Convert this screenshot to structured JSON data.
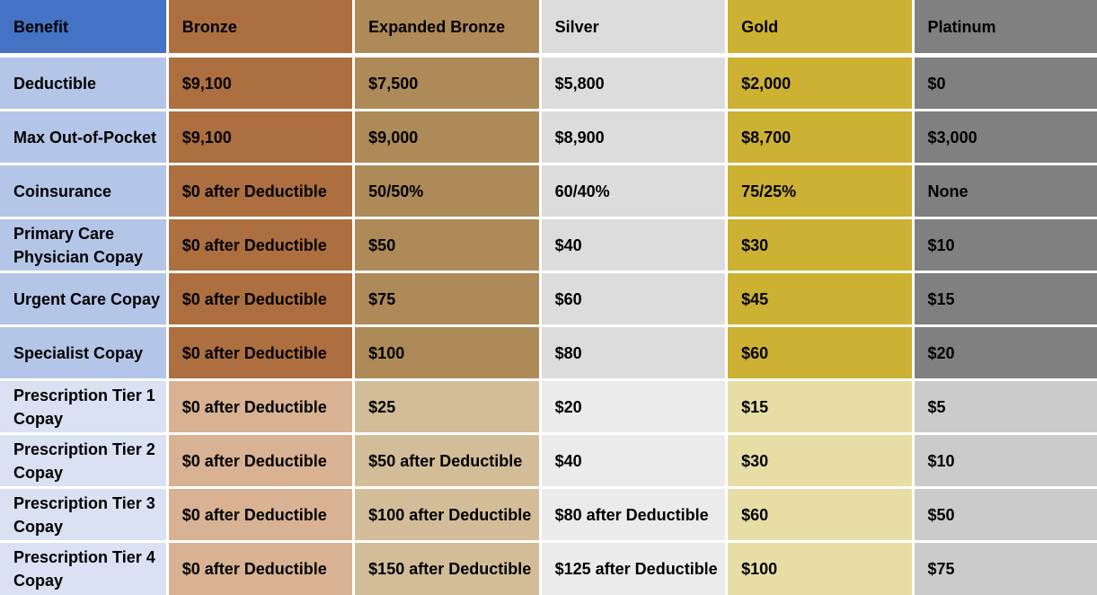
{
  "columns": [
    "Benefit",
    "Bronze",
    "Expanded Bronze",
    "Silver",
    "Gold",
    "Platinum"
  ],
  "rows": [
    {
      "label": "Deductible",
      "values": [
        "$9,100",
        "$7,500",
        "$5,800",
        "$2,000",
        "$0"
      ]
    },
    {
      "label": "Max Out-of-Pocket",
      "values": [
        "$9,100",
        "$9,000",
        "$8,900",
        "$8,700",
        "$3,000"
      ]
    },
    {
      "label": "Coinsurance",
      "values": [
        "$0 after Deductible",
        "50/50%",
        "60/40%",
        "75/25%",
        "None"
      ]
    },
    {
      "label": "Primary Care Physician Copay",
      "values": [
        "$0 after Deductible",
        "$50",
        "$40",
        "$30",
        "$10"
      ]
    },
    {
      "label": "Urgent Care Copay",
      "values": [
        "$0 after Deductible",
        "$75",
        "$60",
        "$45",
        "$15"
      ]
    },
    {
      "label": "Specialist Copay",
      "values": [
        "$0 after Deductible",
        "$100",
        "$80",
        "$60",
        "$20"
      ]
    },
    {
      "label": "Prescription Tier 1 Copay",
      "values": [
        "$0 after Deductible",
        "$25",
        "$20",
        "$15",
        "$5"
      ]
    },
    {
      "label": "Prescription Tier 2 Copay",
      "values": [
        "$0 after Deductible",
        "$50 after Deductible",
        "$40",
        "$30",
        "$10"
      ]
    },
    {
      "label": "Prescription Tier 3 Copay",
      "values": [
        "$0 after Deductible",
        "$100 after Deductible",
        "$80 after Deductible",
        "$60",
        "$50"
      ]
    },
    {
      "label": "Prescription Tier 4 Copay",
      "values": [
        "$0 after Deductible",
        "$150 after Deductible",
        "$125 after Deductible",
        "$100",
        "$75"
      ]
    }
  ],
  "colors": {
    "header_benefit": "#4472c4",
    "bronze": "#ad6f40",
    "expanded_bronze": "#ae8a58",
    "silver": "#dcdcdc",
    "gold": "#cdb132",
    "platinum": "#808080"
  }
}
